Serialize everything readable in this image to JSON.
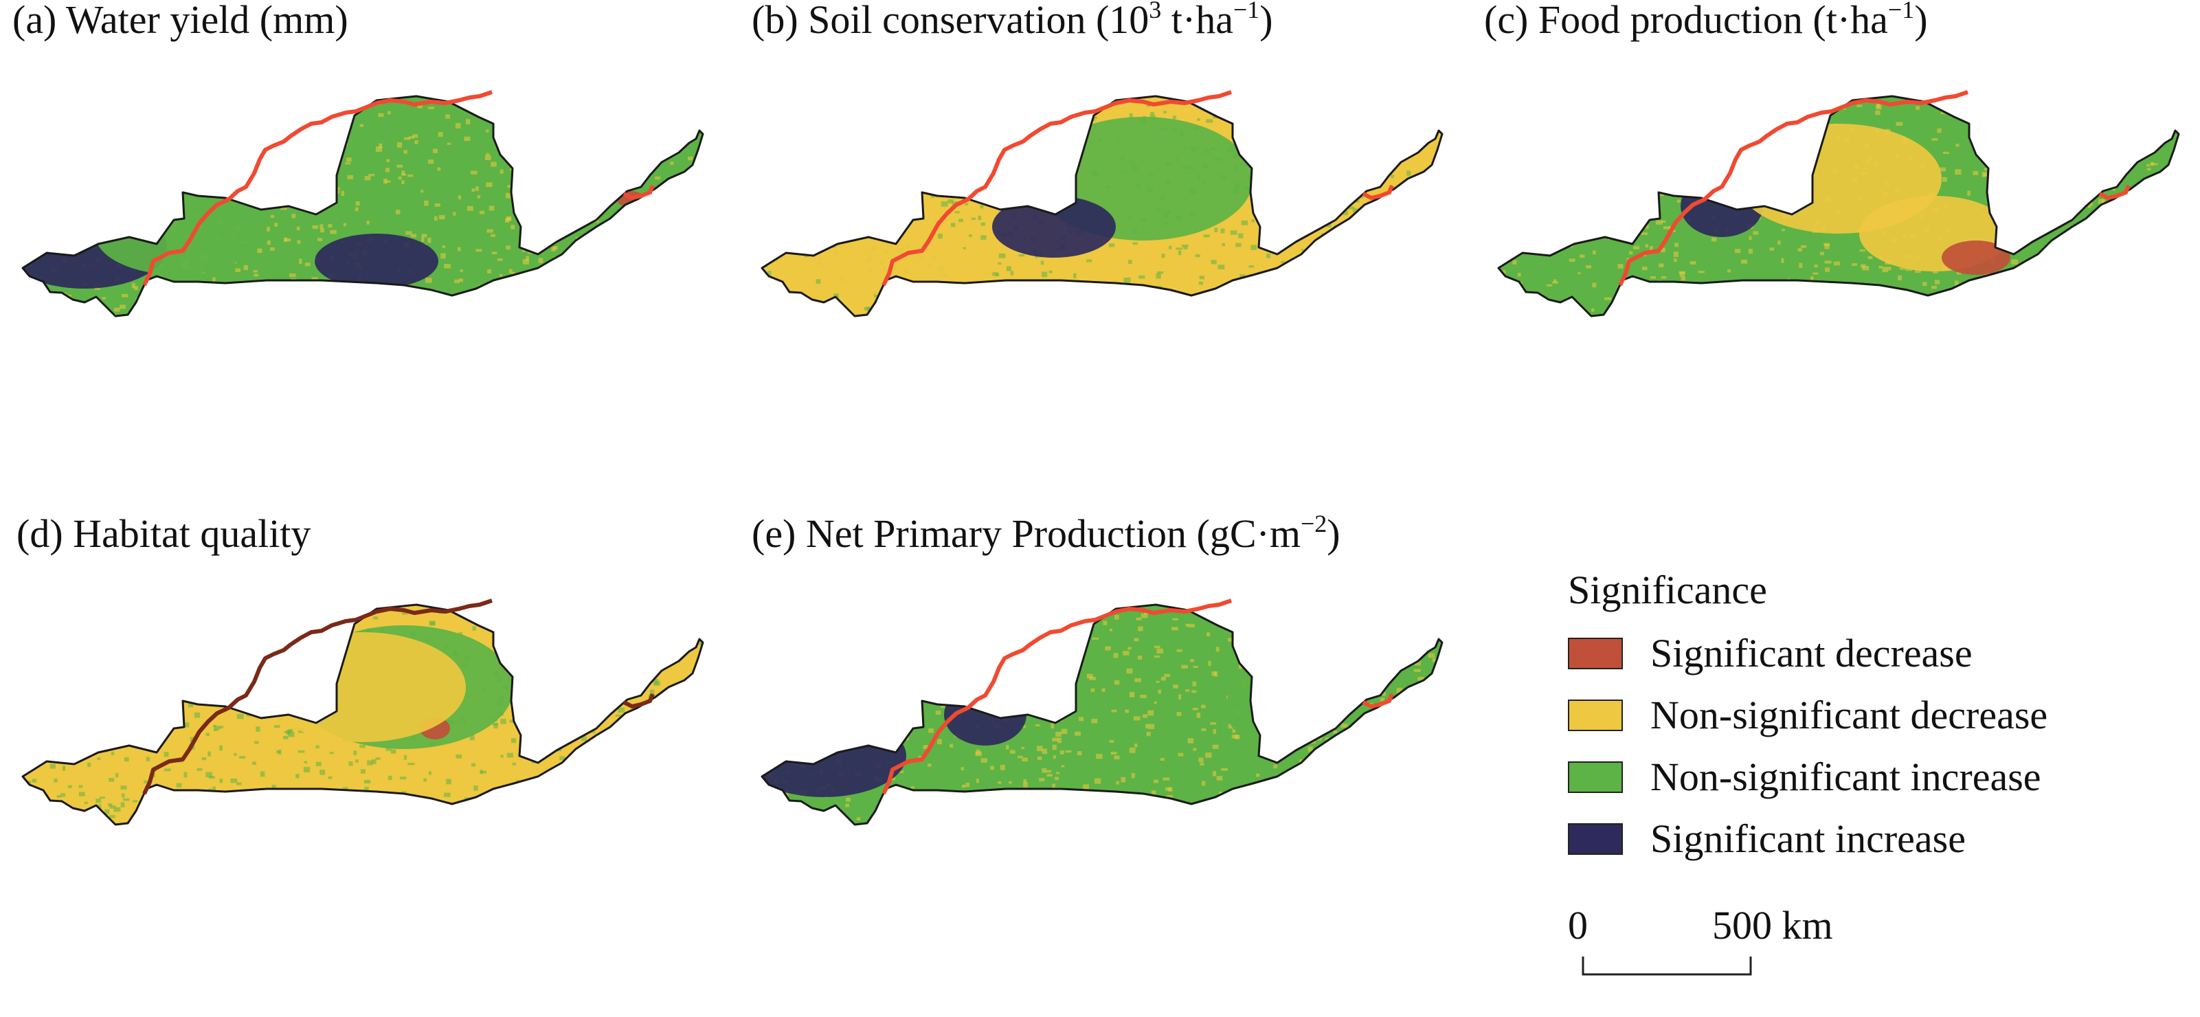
{
  "panels": [
    {
      "title": "(a) Water yield (mm)",
      "base": "green",
      "overlays": [
        "purple",
        "yellow",
        "red",
        "green",
        "purple"
      ]
    },
    {
      "title_prefix": "(b) Soil conservation (10",
      "title_sup": "3",
      "title_mid": " t·ha",
      "title_sup2": "−1",
      "title_suffix": ")",
      "base": "yellow",
      "overlays": [
        "green",
        "yellow",
        "purple",
        "yellow"
      ]
    },
    {
      "title_prefix": "(c) Food production (t·ha",
      "title_sup": "−1",
      "title_suffix": ")",
      "base": "green",
      "overlays": [
        "yellow",
        "purple",
        "yellow",
        "red"
      ]
    },
    {
      "title": "(d) Habitat quality",
      "base": "yellow",
      "overlays": [
        "green",
        "red",
        "yellow"
      ]
    },
    {
      "title_prefix": "(e) Net Primary Production (gC·m",
      "title_sup": "−2",
      "title_suffix": ")",
      "base": "green",
      "overlays": [
        "purple",
        "purple",
        "green"
      ]
    }
  ],
  "legend": {
    "heading": "Significance",
    "items": [
      {
        "label": "Significant decrease",
        "color": "#c0503a"
      },
      {
        "label": "Non-significant decrease",
        "color": "#eec840"
      },
      {
        "label": "Non-significant increase",
        "color": "#5db345"
      },
      {
        "label": "Significant increase",
        "color": "#2e2a5c"
      }
    ]
  },
  "scale": {
    "start": "0",
    "end": "500 km"
  },
  "colors": {
    "red": "#c0503a",
    "yellow": "#eec840",
    "green": "#5db345",
    "purple": "#2e2a5c",
    "boundary": "#1a1a1a",
    "line_red": "#f04a32",
    "line_brown": "#7a2a18"
  }
}
